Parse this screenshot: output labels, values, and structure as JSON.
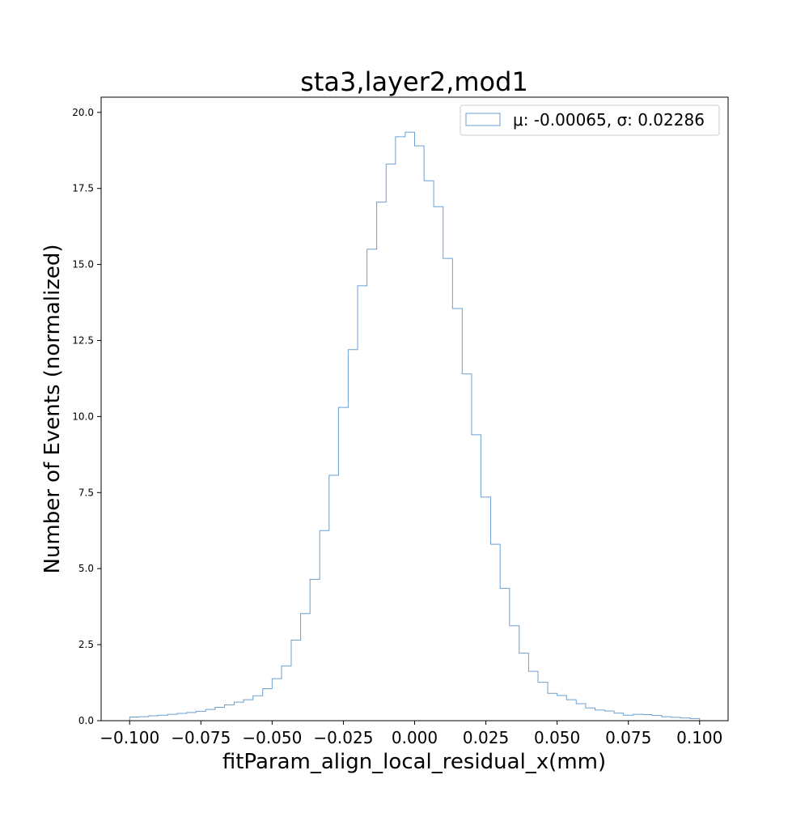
{
  "chart_data": {
    "type": "histogram",
    "title": "sta3,layer2,mod1",
    "xlabel": "fitParam_align_local_residual_x(mm)",
    "ylabel": "Number of Events (normalized)",
    "xlim": [
      -0.11,
      0.11
    ],
    "ylim": [
      0,
      20.5
    ],
    "x_ticks": [
      -0.1,
      -0.075,
      -0.05,
      -0.025,
      0.0,
      0.025,
      0.05,
      0.075,
      0.1
    ],
    "x_tick_labels": [
      "−0.100",
      "−0.075",
      "−0.050",
      "−0.025",
      "0.000",
      "0.025",
      "0.050",
      "0.075",
      "0.100"
    ],
    "y_ticks": [
      0,
      2.5,
      5,
      7.5,
      10,
      12.5,
      15,
      17.5,
      20
    ],
    "y_tick_labels": [
      "0.0",
      "2.5",
      "5.0",
      "7.5",
      "10.0",
      "12.5",
      "15.0",
      "17.5",
      "20.0"
    ],
    "grid": false,
    "legend_position": "top-right",
    "series": [
      {
        "name": "μ: -0.00065, σ: 0.02286",
        "color": "#6b9fd0",
        "bin_edges": [
          -0.1,
          -0.0967,
          -0.0933,
          -0.09,
          -0.0867,
          -0.0833,
          -0.08,
          -0.0767,
          -0.0733,
          -0.07,
          -0.0667,
          -0.0633,
          -0.06,
          -0.0567,
          -0.0533,
          -0.05,
          -0.0467,
          -0.0433,
          -0.04,
          -0.0367,
          -0.0333,
          -0.03,
          -0.0267,
          -0.0233,
          -0.02,
          -0.0167,
          -0.0133,
          -0.01,
          -0.0067,
          -0.0033,
          0.0,
          0.0033,
          0.0067,
          0.01,
          0.0133,
          0.0167,
          0.02,
          0.0233,
          0.0267,
          0.03,
          0.0333,
          0.0367,
          0.04,
          0.0433,
          0.0467,
          0.05,
          0.0533,
          0.0567,
          0.06,
          0.0633,
          0.0667,
          0.07,
          0.0733,
          0.0767,
          0.08,
          0.0833,
          0.0867,
          0.09,
          0.0933,
          0.0967,
          0.1
        ],
        "values": [
          0.12,
          0.13,
          0.16,
          0.18,
          0.21,
          0.24,
          0.27,
          0.31,
          0.37,
          0.44,
          0.52,
          0.61,
          0.69,
          0.82,
          1.05,
          1.38,
          1.8,
          2.65,
          3.52,
          4.65,
          6.25,
          8.07,
          10.3,
          12.2,
          14.3,
          15.5,
          17.05,
          18.3,
          19.2,
          19.35,
          18.9,
          17.75,
          16.9,
          15.2,
          13.55,
          11.4,
          9.4,
          7.35,
          5.8,
          4.35,
          3.12,
          2.22,
          1.62,
          1.26,
          0.9,
          0.83,
          0.69,
          0.56,
          0.42,
          0.35,
          0.32,
          0.25,
          0.18,
          0.21,
          0.2,
          0.17,
          0.13,
          0.11,
          0.09,
          0.07
        ]
      }
    ]
  }
}
